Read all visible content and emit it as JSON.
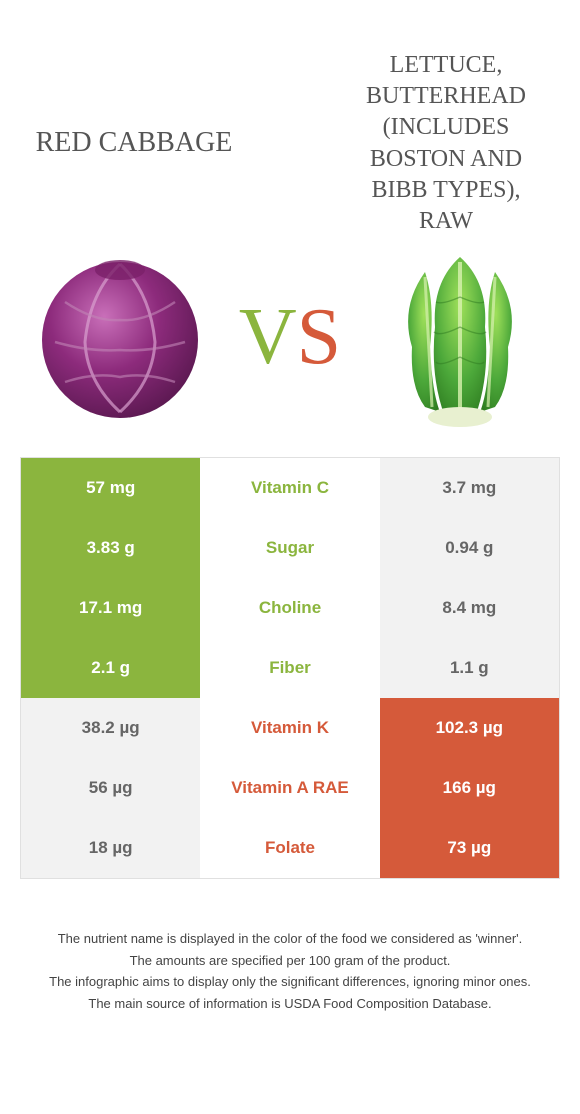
{
  "colors": {
    "left": "#8bb53e",
    "right": "#d55a3a",
    "cell_bg_winner": "#8bb53e",
    "cell_bg_loser": "#f2f2f2",
    "cabbage_main": "#8d2b7c",
    "cabbage_light": "#b347a3",
    "cabbage_dark": "#6a1f5e",
    "lettuce_main": "#4ca83a",
    "lettuce_light": "#7dc942",
    "lettuce_dark": "#2d7a1f"
  },
  "header": {
    "left_title": "RED CABBAGE",
    "right_title": "LETTUCE, BUTTERHEAD (INCLUDES BOSTON AND BIBB TYPES), RAW",
    "vs_v": "V",
    "vs_s": "S"
  },
  "rows": [
    {
      "nutrient": "Vitamin C",
      "left": "57 mg",
      "right": "3.7 mg",
      "winner": "left"
    },
    {
      "nutrient": "Sugar",
      "left": "3.83 g",
      "right": "0.94 g",
      "winner": "left"
    },
    {
      "nutrient": "Choline",
      "left": "17.1 mg",
      "right": "8.4 mg",
      "winner": "left"
    },
    {
      "nutrient": "Fiber",
      "left": "2.1 g",
      "right": "1.1 g",
      "winner": "left"
    },
    {
      "nutrient": "Vitamin K",
      "left": "38.2 µg",
      "right": "102.3 µg",
      "winner": "right"
    },
    {
      "nutrient": "Vitamin A RAE",
      "left": "56 µg",
      "right": "166 µg",
      "winner": "right"
    },
    {
      "nutrient": "Folate",
      "left": "18 µg",
      "right": "73 µg",
      "winner": "right"
    }
  ],
  "footer": {
    "line1": "The nutrient name is displayed in the color of the food we considered as 'winner'.",
    "line2": "The amounts are specified per 100 gram of the product.",
    "line3": "The infographic aims to display only the significant differences, ignoring minor ones.",
    "line4": "The main source of information is USDA Food Composition Database."
  }
}
